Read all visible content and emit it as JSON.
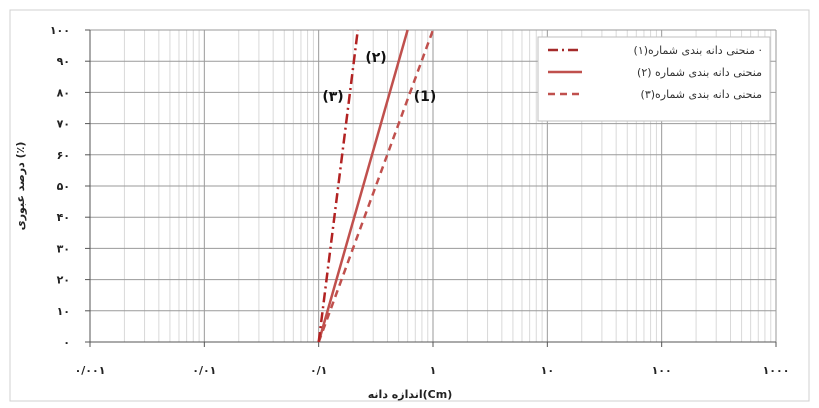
{
  "chart_data": {
    "type": "line",
    "x_scale": "log",
    "x_ticks": [
      0.001,
      0.01,
      0.1,
      1,
      10,
      100,
      1000
    ],
    "x_tick_labels": [
      "۰/۰۰۱",
      "۰/۰۱",
      "۰/۱",
      "۱",
      "۱۰",
      "۱۰۰",
      "۱۰۰۰"
    ],
    "xlim": [
      0.001,
      1000
    ],
    "ylim": [
      0,
      100
    ],
    "y_ticks": [
      0,
      10,
      20,
      30,
      40,
      50,
      60,
      70,
      80,
      90,
      100
    ],
    "y_tick_labels": [
      "۰",
      "۱۰",
      "۲۰",
      "۳۰",
      "۴۰",
      "۵۰",
      "۶۰",
      "۷۰",
      "۸۰",
      "۹۰",
      "۱۰۰"
    ],
    "xlabel": "اندازه دانه(Cm)",
    "ylabel": "درصد عبوری (٪)",
    "grid": true,
    "legend_position": "top-right",
    "series": [
      {
        "name": "منحنی دانه بندی شماره(۱)",
        "curve_label": "(1)",
        "color": "#c0504d",
        "dash": "dash",
        "x": [
          0.1,
          1.0
        ],
        "y": [
          0,
          100
        ]
      },
      {
        "name": "منحنی دانه بندی شماره (۲)",
        "curve_label": "(۲)",
        "color": "#c0504d",
        "dash": "solid",
        "x": [
          0.1,
          0.6
        ],
        "y": [
          0,
          100
        ]
      },
      {
        "name": "منحنی دانه بندی شماره(۳)",
        "curve_label": "(۳)",
        "color": "#b22222",
        "dash": "dashdot",
        "x": [
          0.1,
          0.22
        ],
        "y": [
          0,
          100
        ]
      }
    ],
    "legend_entries": [
      {
        "label": "منحنی دانه بندی شماره(۱) ·",
        "color": "#a52a2a",
        "dash": "dashdot"
      },
      {
        "label": "منحنی دانه بندی شماره (۲)",
        "color": "#c0504d",
        "dash": "solid"
      },
      {
        "label": "منحنی دانه بندی شماره(۳)",
        "color": "#c0504d",
        "dash": "dash"
      }
    ]
  }
}
